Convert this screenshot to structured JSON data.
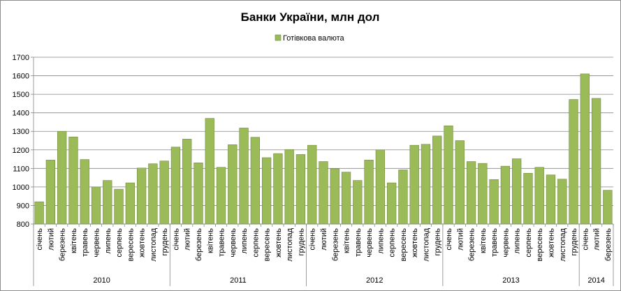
{
  "chart_data": {
    "type": "bar",
    "title": "Банки України, млн дол",
    "legend": {
      "position": "top"
    },
    "ylim": [
      800,
      1700
    ],
    "yticks": [
      800,
      900,
      1000,
      1100,
      1200,
      1300,
      1400,
      1500,
      1600,
      1700
    ],
    "grid": true,
    "colors": {
      "bar": "#9bbb59",
      "bar_edge": "#71893f",
      "grid": "#868686"
    },
    "categories": [
      "січень",
      "лютий",
      "березень",
      "квітень",
      "травень",
      "червень",
      "липень",
      "серпень",
      "вересень",
      "жовтень",
      "листопад",
      "грудень",
      "січень",
      "лютий",
      "березень",
      "квітень",
      "травень",
      "червень",
      "липень",
      "серпень",
      "вересень",
      "жовтень",
      "листопад",
      "грудень",
      "січень",
      "лютий",
      "березень",
      "квітень",
      "травень",
      "червень",
      "липень",
      "серпень",
      "вересень",
      "жовтень",
      "листопад",
      "грудень",
      "січень",
      "лютий",
      "березень",
      "квітень",
      "травень",
      "червень",
      "липень",
      "серпень",
      "вересень",
      "жовтень",
      "листопад",
      "грудень",
      "січень",
      "лютий",
      "березень"
    ],
    "years": [
      {
        "label": "2010",
        "count": 12
      },
      {
        "label": "2011",
        "count": 12
      },
      {
        "label": "2012",
        "count": 12
      },
      {
        "label": "2013",
        "count": 12
      },
      {
        "label": "2014",
        "count": 3
      }
    ],
    "series": [
      {
        "name": "Готівкова валюта",
        "values": [
          920,
          1145,
          1300,
          1270,
          1148,
          1000,
          1035,
          988,
          1022,
          1102,
          1125,
          1140,
          1215,
          1258,
          1130,
          1370,
          1106,
          1228,
          1318,
          1268,
          1158,
          1180,
          1202,
          1175,
          1225,
          1137,
          1098,
          1080,
          1035,
          1145,
          1200,
          1022,
          1092,
          1225,
          1230,
          1275,
          1330,
          1250,
          1137,
          1127,
          1040,
          1112,
          1152,
          1074,
          1106,
          1065,
          1042,
          1472,
          1610,
          1478,
          982
        ]
      }
    ]
  }
}
